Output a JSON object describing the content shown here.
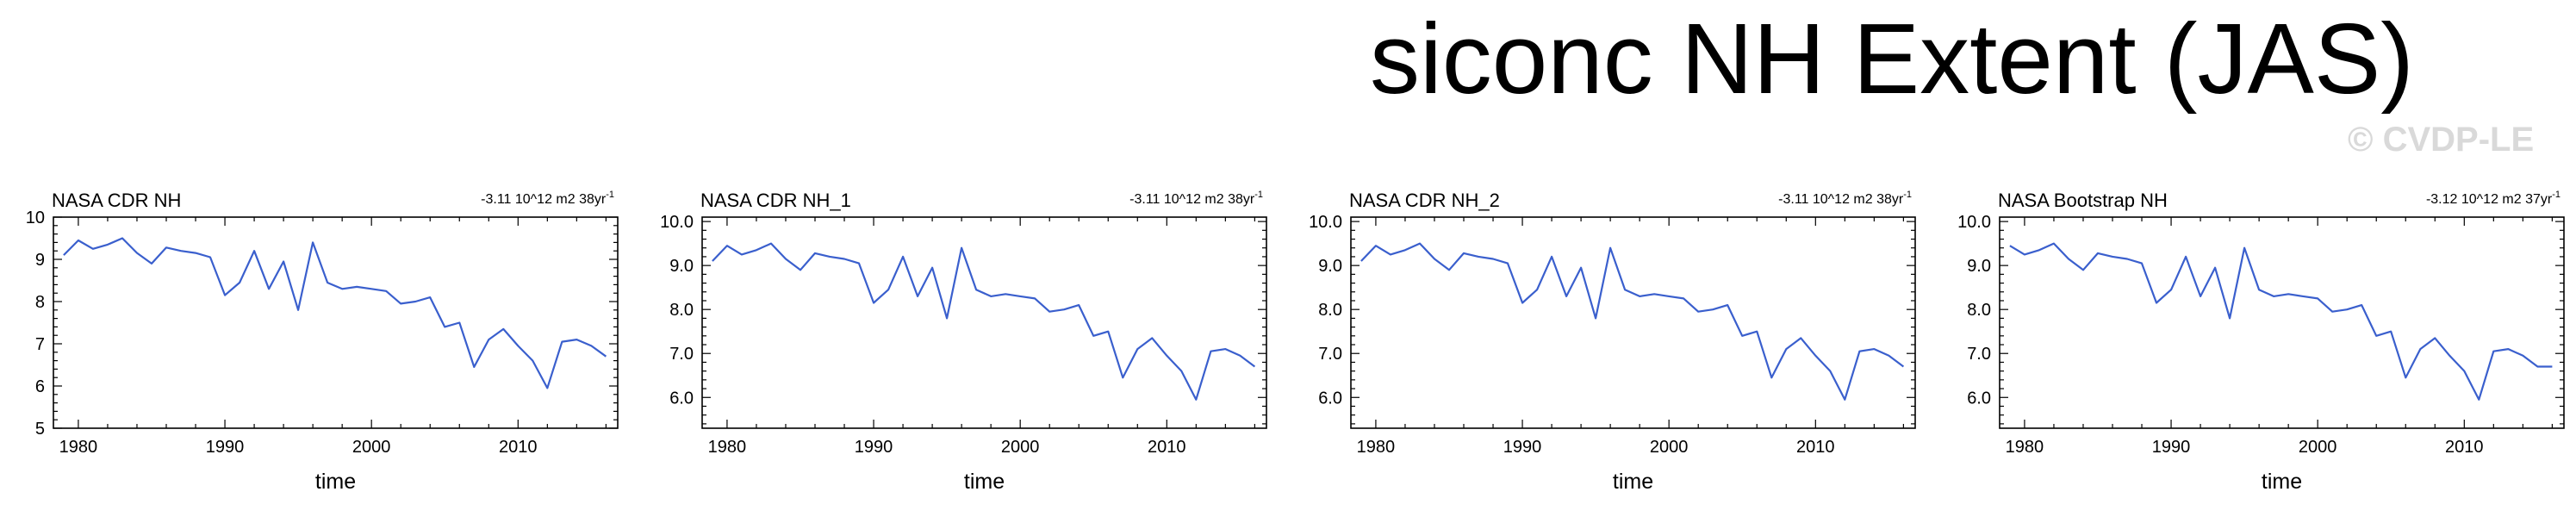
{
  "figure": {
    "title": "siconc NH Extent (JAS)",
    "watermark": "© CVDP-LE"
  },
  "colors": {
    "line": "#3a5fcd",
    "axis": "#000000",
    "watermark": "#d9d9d9"
  },
  "chart_data": [
    {
      "type": "line",
      "title": "NASA CDR NH",
      "trend_text": "-3.11 10^12 m2 38yr",
      "trend_exp": "-1",
      "xlabel": "time",
      "ylabel": "",
      "xlim": [
        1978.3,
        2016.8
      ],
      "ylim": [
        5,
        10
      ],
      "xticks": [
        1980,
        1990,
        2000,
        2010
      ],
      "yticks": [
        5,
        6,
        7,
        8,
        9,
        10
      ],
      "ytick_labels": [
        "5",
        "6",
        "7",
        "8",
        "9",
        "10"
      ],
      "series": [
        {
          "name": "NASA CDR NH",
          "x": [
            1979,
            1980,
            1981,
            1982,
            1983,
            1984,
            1985,
            1986,
            1987,
            1988,
            1989,
            1990,
            1991,
            1992,
            1993,
            1994,
            1995,
            1996,
            1997,
            1998,
            1999,
            2000,
            2001,
            2002,
            2003,
            2004,
            2005,
            2006,
            2007,
            2008,
            2009,
            2010,
            2011,
            2012,
            2013,
            2014,
            2015,
            2016
          ],
          "values": [
            9.1,
            9.45,
            9.25,
            9.35,
            9.5,
            9.15,
            8.9,
            9.28,
            9.2,
            9.15,
            9.05,
            8.15,
            8.45,
            9.2,
            8.3,
            8.95,
            7.8,
            9.4,
            8.45,
            8.3,
            8.35,
            8.3,
            8.25,
            7.95,
            8.0,
            8.1,
            7.4,
            7.5,
            6.45,
            7.1,
            7.35,
            6.95,
            6.6,
            5.95,
            7.05,
            7.1,
            6.95,
            6.7
          ]
        }
      ]
    },
    {
      "type": "line",
      "title": "NASA CDR NH_1",
      "trend_text": "-3.11 10^12 m2 38yr",
      "trend_exp": "-1",
      "xlabel": "time",
      "ylabel": "",
      "xlim": [
        1978.3,
        2016.8
      ],
      "ylim": [
        5.3,
        10.1
      ],
      "xticks": [
        1980,
        1990,
        2000,
        2010
      ],
      "yticks": [
        6,
        7,
        8,
        9,
        10
      ],
      "ytick_labels": [
        "6.0",
        "7.0",
        "8.0",
        "9.0",
        "10.0"
      ],
      "series": [
        {
          "name": "NASA CDR NH_1",
          "x": [
            1979,
            1980,
            1981,
            1982,
            1983,
            1984,
            1985,
            1986,
            1987,
            1988,
            1989,
            1990,
            1991,
            1992,
            1993,
            1994,
            1995,
            1996,
            1997,
            1998,
            1999,
            2000,
            2001,
            2002,
            2003,
            2004,
            2005,
            2006,
            2007,
            2008,
            2009,
            2010,
            2011,
            2012,
            2013,
            2014,
            2015,
            2016
          ],
          "values": [
            9.1,
            9.45,
            9.25,
            9.35,
            9.5,
            9.15,
            8.9,
            9.28,
            9.2,
            9.15,
            9.05,
            8.15,
            8.45,
            9.2,
            8.3,
            8.95,
            7.8,
            9.4,
            8.45,
            8.3,
            8.35,
            8.3,
            8.25,
            7.95,
            8.0,
            8.1,
            7.4,
            7.5,
            6.45,
            7.1,
            7.35,
            6.95,
            6.6,
            5.95,
            7.05,
            7.1,
            6.95,
            6.7
          ]
        }
      ]
    },
    {
      "type": "line",
      "title": "NASA CDR NH_2",
      "trend_text": "-3.11 10^12 m2 38yr",
      "trend_exp": "-1",
      "xlabel": "time",
      "ylabel": "",
      "xlim": [
        1978.3,
        2016.8
      ],
      "ylim": [
        5.3,
        10.1
      ],
      "xticks": [
        1980,
        1990,
        2000,
        2010
      ],
      "yticks": [
        6,
        7,
        8,
        9,
        10
      ],
      "ytick_labels": [
        "6.0",
        "7.0",
        "8.0",
        "9.0",
        "10.0"
      ],
      "series": [
        {
          "name": "NASA CDR NH_2",
          "x": [
            1979,
            1980,
            1981,
            1982,
            1983,
            1984,
            1985,
            1986,
            1987,
            1988,
            1989,
            1990,
            1991,
            1992,
            1993,
            1994,
            1995,
            1996,
            1997,
            1998,
            1999,
            2000,
            2001,
            2002,
            2003,
            2004,
            2005,
            2006,
            2007,
            2008,
            2009,
            2010,
            2011,
            2012,
            2013,
            2014,
            2015,
            2016
          ],
          "values": [
            9.1,
            9.45,
            9.25,
            9.35,
            9.5,
            9.15,
            8.9,
            9.28,
            9.2,
            9.15,
            9.05,
            8.15,
            8.45,
            9.2,
            8.3,
            8.95,
            7.8,
            9.4,
            8.45,
            8.3,
            8.35,
            8.3,
            8.25,
            7.95,
            8.0,
            8.1,
            7.4,
            7.5,
            6.45,
            7.1,
            7.35,
            6.95,
            6.6,
            5.95,
            7.05,
            7.1,
            6.95,
            6.7
          ]
        }
      ]
    },
    {
      "type": "line",
      "title": "NASA Bootstrap NH",
      "trend_text": "-3.12 10^12 m2 37yr",
      "trend_exp": "-1",
      "xlabel": "time",
      "ylabel": "",
      "xlim": [
        1978.3,
        2016.8
      ],
      "ylim": [
        5.3,
        10.1
      ],
      "xticks": [
        1980,
        1990,
        2000,
        2010
      ],
      "yticks": [
        6,
        7,
        8,
        9,
        10
      ],
      "ytick_labels": [
        "6.0",
        "7.0",
        "8.0",
        "9.0",
        "10.0"
      ],
      "series": [
        {
          "name": "NASA Bootstrap NH",
          "x": [
            1979,
            1980,
            1981,
            1982,
            1983,
            1984,
            1985,
            1986,
            1987,
            1988,
            1989,
            1990,
            1991,
            1992,
            1993,
            1994,
            1995,
            1996,
            1997,
            1998,
            1999,
            2000,
            2001,
            2002,
            2003,
            2004,
            2005,
            2006,
            2007,
            2008,
            2009,
            2010,
            2011,
            2012,
            2013,
            2014,
            2015,
            2016
          ],
          "values": [
            9.45,
            9.25,
            9.35,
            9.5,
            9.15,
            8.9,
            9.28,
            9.2,
            9.15,
            9.05,
            8.15,
            8.45,
            9.2,
            8.3,
            8.95,
            7.8,
            9.4,
            8.45,
            8.3,
            8.35,
            8.3,
            8.25,
            7.95,
            8.0,
            8.1,
            7.4,
            7.5,
            6.45,
            7.1,
            7.35,
            6.95,
            6.6,
            5.95,
            7.05,
            7.1,
            6.95,
            6.7,
            6.7
          ]
        }
      ]
    }
  ]
}
